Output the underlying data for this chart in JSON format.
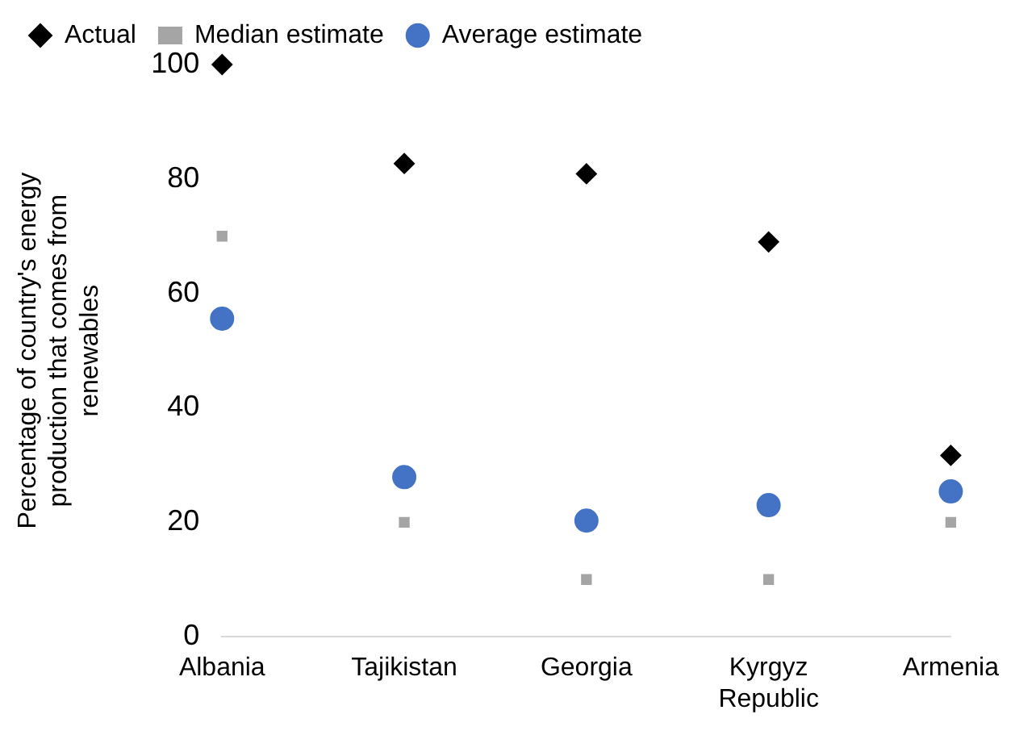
{
  "chart_data": {
    "type": "scatter",
    "ylabel": "Percentage of country's energy production that comes from renewables",
    "categories": [
      "Albania",
      "Tajikistan",
      "Georgia",
      "Kyrgyz Republic",
      "Armenia"
    ],
    "ylim": [
      0,
      100
    ],
    "yticks": [
      0,
      20,
      40,
      60,
      80,
      100
    ],
    "grid": false,
    "legend": "top",
    "series": [
      {
        "name": "Actual",
        "color": "#000000",
        "marker": "diamond",
        "values": [
          100,
          82.7,
          80.9,
          69,
          31.7
        ]
      },
      {
        "name": "Median estimate",
        "color": "#a5a5a5",
        "marker": "square",
        "values": [
          70,
          20,
          10,
          10,
          20
        ]
      },
      {
        "name": "Average estimate",
        "color": "#4472c4",
        "marker": "circle",
        "values": [
          55.6,
          27.9,
          20.3,
          23,
          25.4
        ]
      }
    ]
  }
}
